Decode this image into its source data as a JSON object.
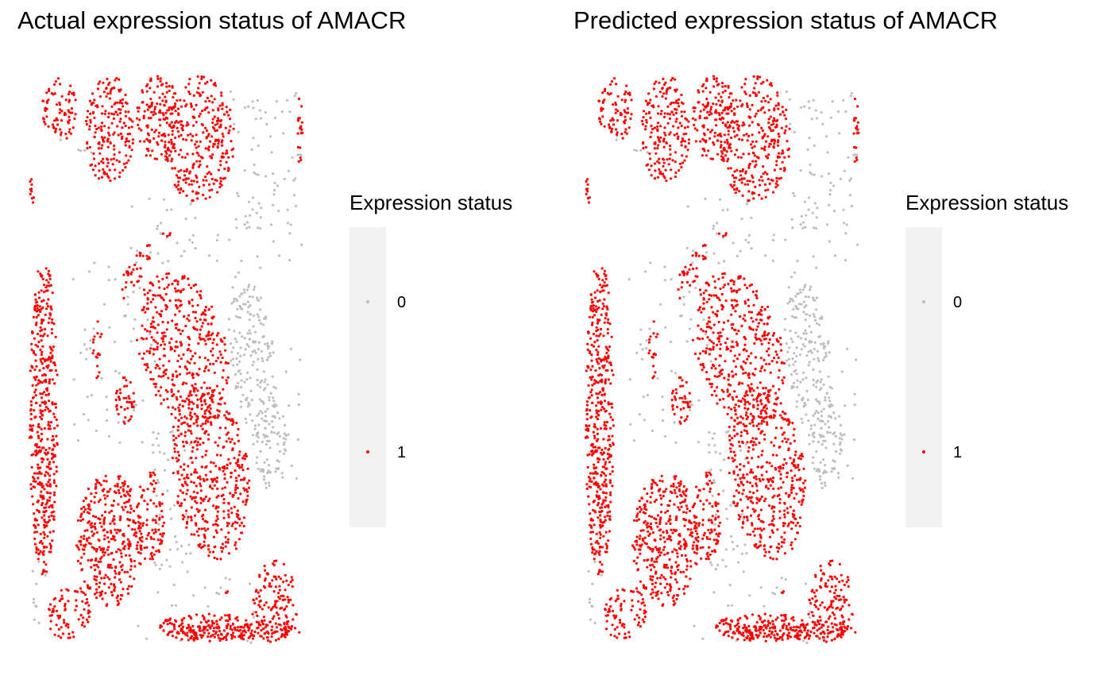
{
  "chart_data": [
    {
      "type": "scatter",
      "title": "Actual expression status of AMACR",
      "legend": {
        "title": "Expression status",
        "placement": "right",
        "entries": [
          {
            "label": "0",
            "color": "#bebebe"
          },
          {
            "label": "1",
            "color": "#ff0000"
          }
        ]
      },
      "axes": "none",
      "grid": false
    },
    {
      "type": "scatter",
      "title": "Predicted expression status of AMACR",
      "legend": {
        "title": "Expression status",
        "placement": "right",
        "entries": [
          {
            "label": "0",
            "color": "#bebebe"
          },
          {
            "label": "1",
            "color": "#ff0000"
          }
        ]
      },
      "axes": "none",
      "grid": false
    }
  ]
}
